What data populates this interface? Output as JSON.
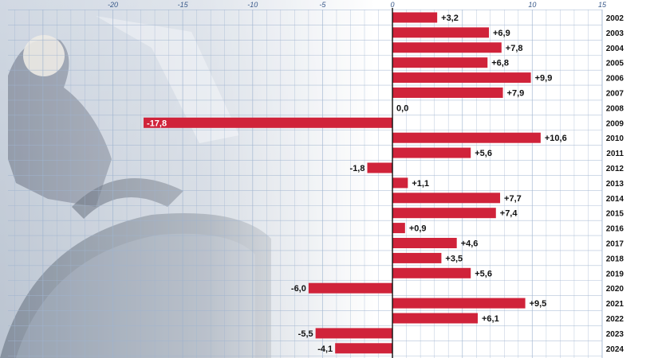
{
  "chart_data": {
    "type": "bar",
    "orientation": "horizontal",
    "categories": [
      "2002",
      "2003",
      "2004",
      "2005",
      "2006",
      "2007",
      "2008",
      "2009",
      "2010",
      "2011",
      "2012",
      "2013",
      "2014",
      "2015",
      "2016",
      "2017",
      "2018",
      "2019",
      "2020",
      "2021",
      "2022",
      "2023",
      "2024"
    ],
    "values": [
      3.2,
      6.9,
      7.8,
      6.8,
      9.9,
      7.9,
      0.0,
      -17.8,
      10.6,
      5.6,
      -1.8,
      1.1,
      7.7,
      7.4,
      0.9,
      4.6,
      3.5,
      5.6,
      -6.0,
      9.5,
      6.1,
      -5.5,
      -4.1
    ],
    "value_labels": [
      "+3,2",
      "+6,9",
      "+7,8",
      "+6,8",
      "+9,9",
      "+7,9",
      "0,0",
      "-17,8",
      "+10,6",
      "+5,6",
      "-1,8",
      "+1,1",
      "+7,7",
      "+7,4",
      "+0,9",
      "+4,6",
      "+3,5",
      "+5,6",
      "-6,0",
      "+9,5",
      "+6,1",
      "-5,5",
      "-4,1"
    ],
    "xlim": [
      -27.5,
      15
    ],
    "x_ticks": [
      -20,
      -15,
      -10,
      -5,
      0,
      10,
      15
    ],
    "x_tick_labels": [
      "-20",
      "-15",
      "-10",
      "-5",
      "0",
      "10",
      "15"
    ],
    "bar_color": "#d0233a",
    "grid": true,
    "title": "",
    "xlabel": "",
    "ylabel": ""
  }
}
